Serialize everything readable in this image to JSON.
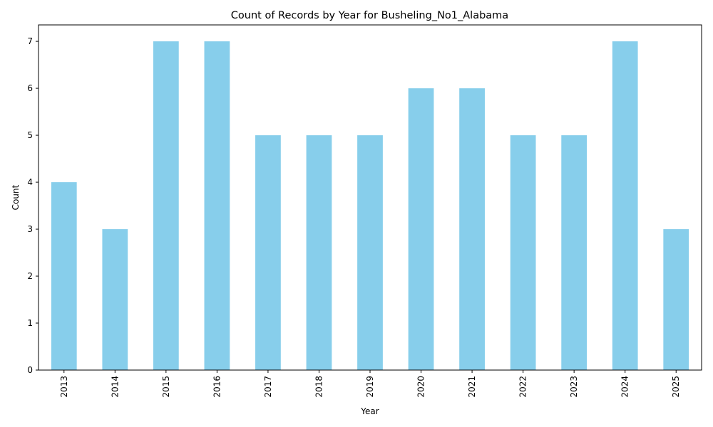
{
  "chart_data": {
    "type": "bar",
    "title": "Count of Records by Year for Busheling_No1_Alabama",
    "xlabel": "Year",
    "ylabel": "Count",
    "categories": [
      "2013",
      "2014",
      "2015",
      "2016",
      "2017",
      "2018",
      "2019",
      "2020",
      "2021",
      "2022",
      "2023",
      "2024",
      "2025"
    ],
    "values": [
      4,
      3,
      7,
      7,
      5,
      5,
      5,
      6,
      6,
      5,
      5,
      7,
      3
    ],
    "ylim": [
      0,
      7.35
    ],
    "yticks": [
      "0",
      "1",
      "2",
      "3",
      "4",
      "5",
      "6",
      "7"
    ],
    "grid": false,
    "legend": "none",
    "bar_color": "#87CEEB",
    "axis_color": "#000000"
  }
}
